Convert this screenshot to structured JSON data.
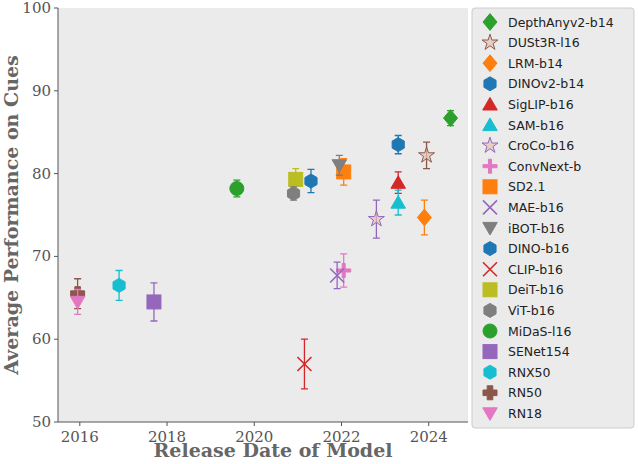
{
  "chart_data": {
    "type": "scatter",
    "x_label": "Release Date of Model",
    "y_label": "Average Performance on Cues",
    "xlim": [
      2015.5,
      2024.9
    ],
    "xticks": [
      2016,
      2018,
      2020,
      2022,
      2024
    ],
    "ylim": [
      50,
      100
    ],
    "yticks": [
      50,
      60,
      70,
      80,
      90,
      100
    ],
    "grid": false,
    "legend": "right",
    "series": [
      {
        "name": "DepthAnyv2-b14",
        "color": "#2ca02c",
        "marker": "diamond",
        "x": [
          2024.5
        ],
        "values": [
          86.7
        ],
        "errors": [
          0.9
        ]
      },
      {
        "name": "DUSt3R-l16",
        "color": "#8c564b",
        "marker": "star",
        "x": [
          2023.95
        ],
        "values": [
          82.2
        ],
        "errors": [
          1.6
        ]
      },
      {
        "name": "LRM-b14",
        "color": "#ff7f0e",
        "marker": "diamond",
        "x": [
          2023.9
        ],
        "values": [
          74.7
        ],
        "errors": [
          2.1
        ]
      },
      {
        "name": "DINOv2-b14",
        "color": "#1f77b4",
        "marker": "hexagon",
        "x": [
          2023.3
        ],
        "values": [
          83.5
        ],
        "errors": [
          1.1
        ]
      },
      {
        "name": "SigLIP-b16",
        "color": "#d62728",
        "marker": "triangle-up",
        "x": [
          2023.3
        ],
        "values": [
          78.9
        ],
        "errors": [
          1.3
        ]
      },
      {
        "name": "SAM-b16",
        "color": "#17becf",
        "marker": "triangle-up",
        "x": [
          2023.3
        ],
        "values": [
          76.5
        ],
        "errors": [
          1.5
        ]
      },
      {
        "name": "CroCo-b16",
        "color": "#9467bd",
        "marker": "star",
        "x": [
          2022.8
        ],
        "values": [
          74.5
        ],
        "errors": [
          2.3
        ]
      },
      {
        "name": "ConvNext-b",
        "color": "#e377c2",
        "marker": "plus",
        "x": [
          2022.05
        ],
        "values": [
          68.3
        ],
        "errors": [
          2.0
        ]
      },
      {
        "name": "SD2.1",
        "color": "#ff7f0e",
        "marker": "square",
        "x": [
          2022.05
        ],
        "values": [
          80.2
        ],
        "errors": [
          1.6
        ]
      },
      {
        "name": "MAE-b16",
        "color": "#9467bd",
        "marker": "x",
        "x": [
          2021.9
        ],
        "values": [
          67.7
        ],
        "errors": [
          1.6
        ]
      },
      {
        "name": "iBOT-b16",
        "color": "#7f7f7f",
        "marker": "triangle-down",
        "x": [
          2021.95
        ],
        "values": [
          81.0
        ],
        "errors": [
          1.2
        ]
      },
      {
        "name": "DINO-b16",
        "color": "#1f77b4",
        "marker": "hexagon",
        "x": [
          2021.3
        ],
        "values": [
          79.1
        ],
        "errors": [
          1.4
        ]
      },
      {
        "name": "CLIP-b16",
        "color": "#d62728",
        "marker": "x",
        "x": [
          2021.15
        ],
        "values": [
          57.0
        ],
        "errors": [
          3.0
        ]
      },
      {
        "name": "DeiT-b16",
        "color": "#bcbd22",
        "marker": "square",
        "x": [
          2020.95
        ],
        "values": [
          79.3
        ],
        "errors": [
          1.3
        ]
      },
      {
        "name": "ViT-b16",
        "color": "#7f7f7f",
        "marker": "hexagon",
        "x": [
          2020.9
        ],
        "values": [
          77.6
        ],
        "errors": [
          0.8
        ]
      },
      {
        "name": "MiDaS-l16",
        "color": "#2ca02c",
        "marker": "circle",
        "x": [
          2019.6
        ],
        "values": [
          78.2
        ],
        "errors": [
          1.0
        ]
      },
      {
        "name": "SENet154",
        "color": "#9467bd",
        "marker": "square",
        "x": [
          2017.7
        ],
        "values": [
          64.5
        ],
        "errors": [
          2.3
        ]
      },
      {
        "name": "RNX50",
        "color": "#17becf",
        "marker": "hexagon",
        "x": [
          2016.9
        ],
        "values": [
          66.5
        ],
        "errors": [
          1.8
        ]
      },
      {
        "name": "RN50",
        "color": "#8c564b",
        "marker": "plus-filled",
        "x": [
          2015.95
        ],
        "values": [
          65.5
        ],
        "errors": [
          1.8
        ]
      },
      {
        "name": "RN18",
        "color": "#e377c2",
        "marker": "triangle-down",
        "x": [
          2015.95
        ],
        "values": [
          64.5
        ],
        "errors": [
          1.5
        ]
      }
    ]
  }
}
